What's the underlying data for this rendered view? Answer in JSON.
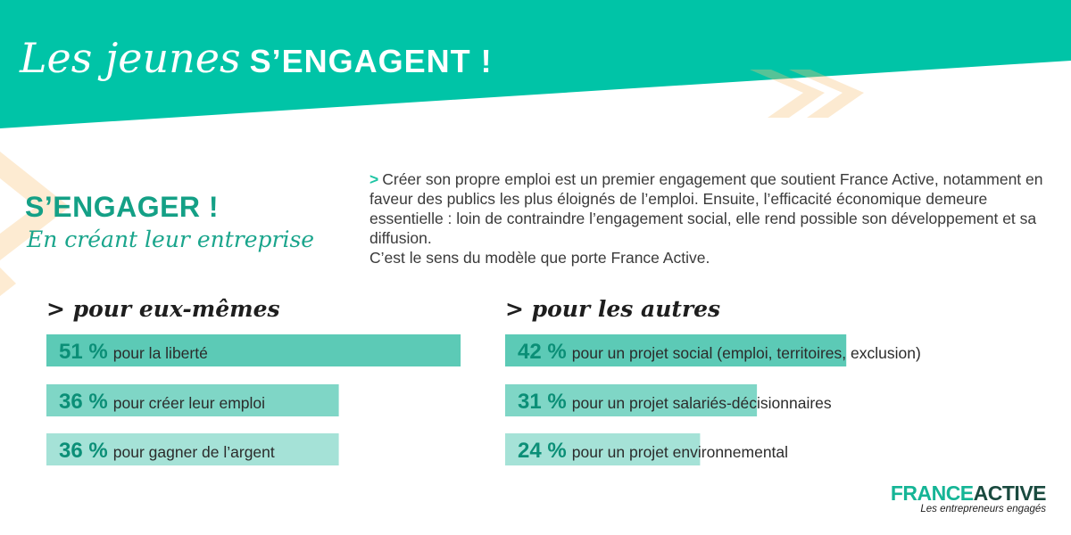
{
  "header": {
    "title_italic": "Les jeunes",
    "title_bold": "S’ENGAGENT !"
  },
  "subheader": {
    "heading": "S’ENGAGER !",
    "tagline": "En créant leur entreprise"
  },
  "intro": {
    "marker": ">",
    "text": "Créer son propre emploi est un premier engagement que soutient France Active, notamment en faveur des publics les plus éloignés de l’emploi. Ensuite, l’efficacité économique demeure essentielle : loin de contraindre l’engagement social, elle rend possible son développement et sa diffusion.",
    "text2": "C’est le sens du modèle que porte France Active."
  },
  "logo": {
    "part1": "FRANCE",
    "part2": "ACTIVE",
    "tagline": "Les entrepreneurs engagés"
  },
  "colors": {
    "header_teal": "#00c4a7",
    "accent_teal": "#14a086",
    "bar_1": "#5ccab6",
    "bar_2": "#7fd6c6",
    "bar_3": "#a5e2d7",
    "orange_chevron": "#fdebd2",
    "pct_text": "#0b8f77"
  },
  "chart_data": [
    {
      "type": "bar",
      "orientation": "horizontal",
      "title": "> pour eux-mêmes",
      "unit": "%",
      "categories": [
        "pour la liberté",
        "pour créer leur emploi",
        "pour gagner de l’argent"
      ],
      "values": [
        51,
        36,
        36
      ],
      "value_labels": [
        "51 %",
        "36 %",
        "36 %"
      ]
    },
    {
      "type": "bar",
      "orientation": "horizontal",
      "title": "> pour les autres",
      "unit": "%",
      "categories": [
        "pour un projet social (emploi, territoires, exclusion)",
        "pour un projet salariés-décisionnaires",
        "pour un projet environnemental"
      ],
      "values": [
        42,
        31,
        24
      ],
      "value_labels": [
        "42 %",
        "31 %",
        "24 %"
      ]
    }
  ]
}
